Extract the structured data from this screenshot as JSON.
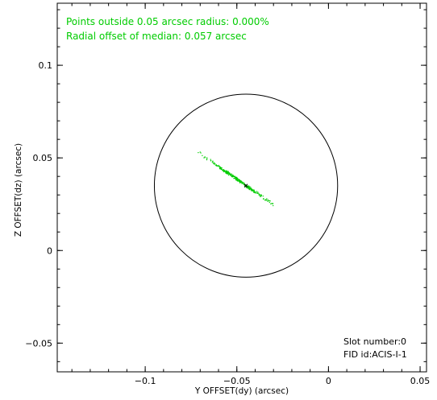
{
  "chart_data": {
    "type": "scatter",
    "xlabel": "Y OFFSET(dy) (arcsec)",
    "ylabel": "Z OFFSET(dz) (arcsec)",
    "xlim": [
      -0.148,
      0.0535
    ],
    "ylim": [
      -0.0655,
      0.1335
    ],
    "x_ticks": [
      -0.1,
      -0.05,
      0,
      0.05
    ],
    "x_tick_labels": [
      "−0.1",
      "−0.05",
      "0",
      "0.05"
    ],
    "y_ticks": [
      -0.05,
      0,
      0.05,
      0.1
    ],
    "y_tick_labels": [
      "−0.05",
      "0",
      "0.05",
      "0.1"
    ],
    "grid": false,
    "circle": {
      "center": [
        -0.045,
        0.035
      ],
      "radius": 0.05
    },
    "median_marker": {
      "x": -0.045,
      "y": 0.035
    },
    "scatter_series": {
      "color": "#00cc00",
      "x_range": [
        -0.071,
        -0.029
      ],
      "y_range": [
        0.024,
        0.053
      ]
    },
    "annotations": {
      "outside_text": "Points outside 0.05 arcsec radius: 0.000%",
      "median_text": "Radial offset of median: 0.057 arcsec",
      "slot_text": "Slot number:0",
      "fid_text": "FID id:ACIS-I-1"
    },
    "colors": {
      "points": "#00cc00",
      "annotation": "#00cc00",
      "axes": "#000000"
    }
  }
}
